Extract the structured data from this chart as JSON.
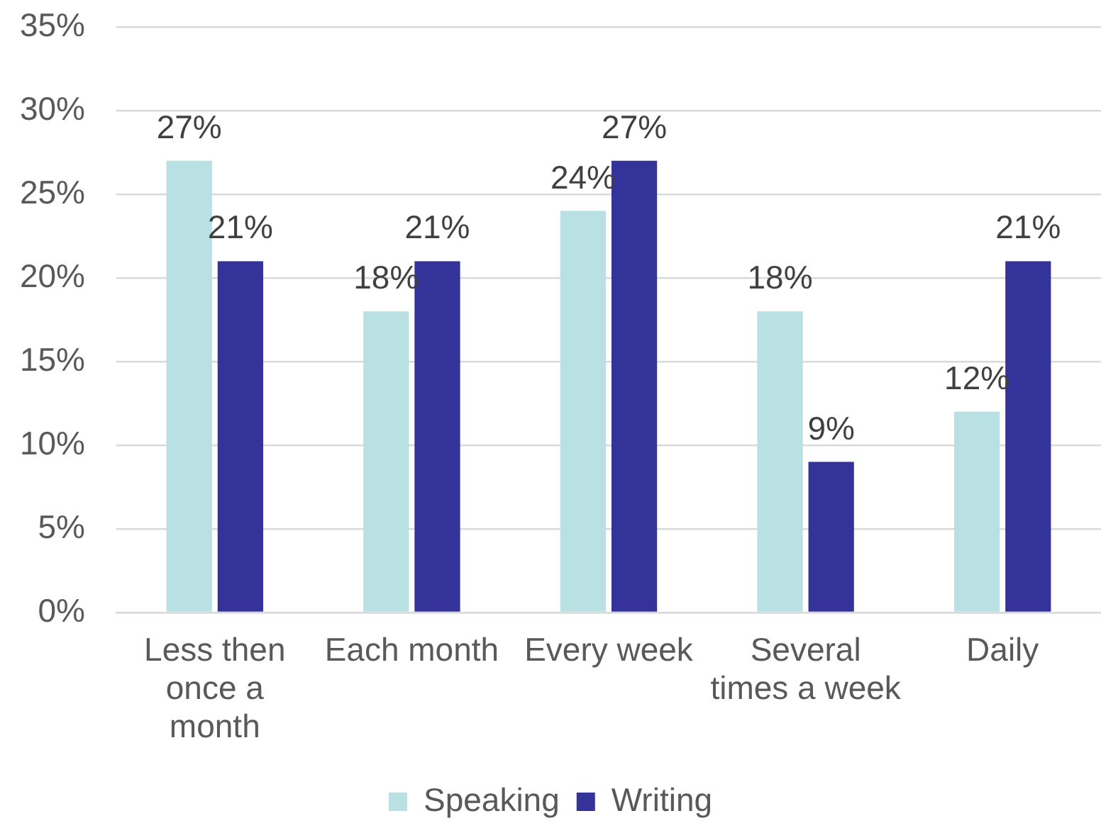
{
  "chart_data": {
    "type": "bar",
    "categories": [
      "Less then once a month",
      "Each month",
      "Every week",
      "Several times a week",
      "Daily"
    ],
    "series": [
      {
        "name": "Speaking",
        "color": "#b9e0e3",
        "values": [
          27,
          18,
          24,
          18,
          12
        ],
        "value_labels": [
          "27%",
          "18%",
          "24%",
          "18%",
          "12%"
        ]
      },
      {
        "name": "Writing",
        "color": "#333399",
        "values": [
          21,
          21,
          27,
          9,
          21
        ],
        "value_labels": [
          "21%",
          "21%",
          "27%",
          "9%",
          "21%"
        ]
      }
    ],
    "ylim": [
      0,
      35
    ],
    "yticks": [
      {
        "value": 0,
        "label": "0%"
      },
      {
        "value": 5,
        "label": "5%"
      },
      {
        "value": 10,
        "label": "10%"
      },
      {
        "value": 15,
        "label": "15%"
      },
      {
        "value": 20,
        "label": "20%"
      },
      {
        "value": 25,
        "label": "25%"
      },
      {
        "value": 30,
        "label": "30%"
      },
      {
        "value": 35,
        "label": "35%"
      }
    ],
    "grid": "y",
    "legend": "bottom"
  }
}
